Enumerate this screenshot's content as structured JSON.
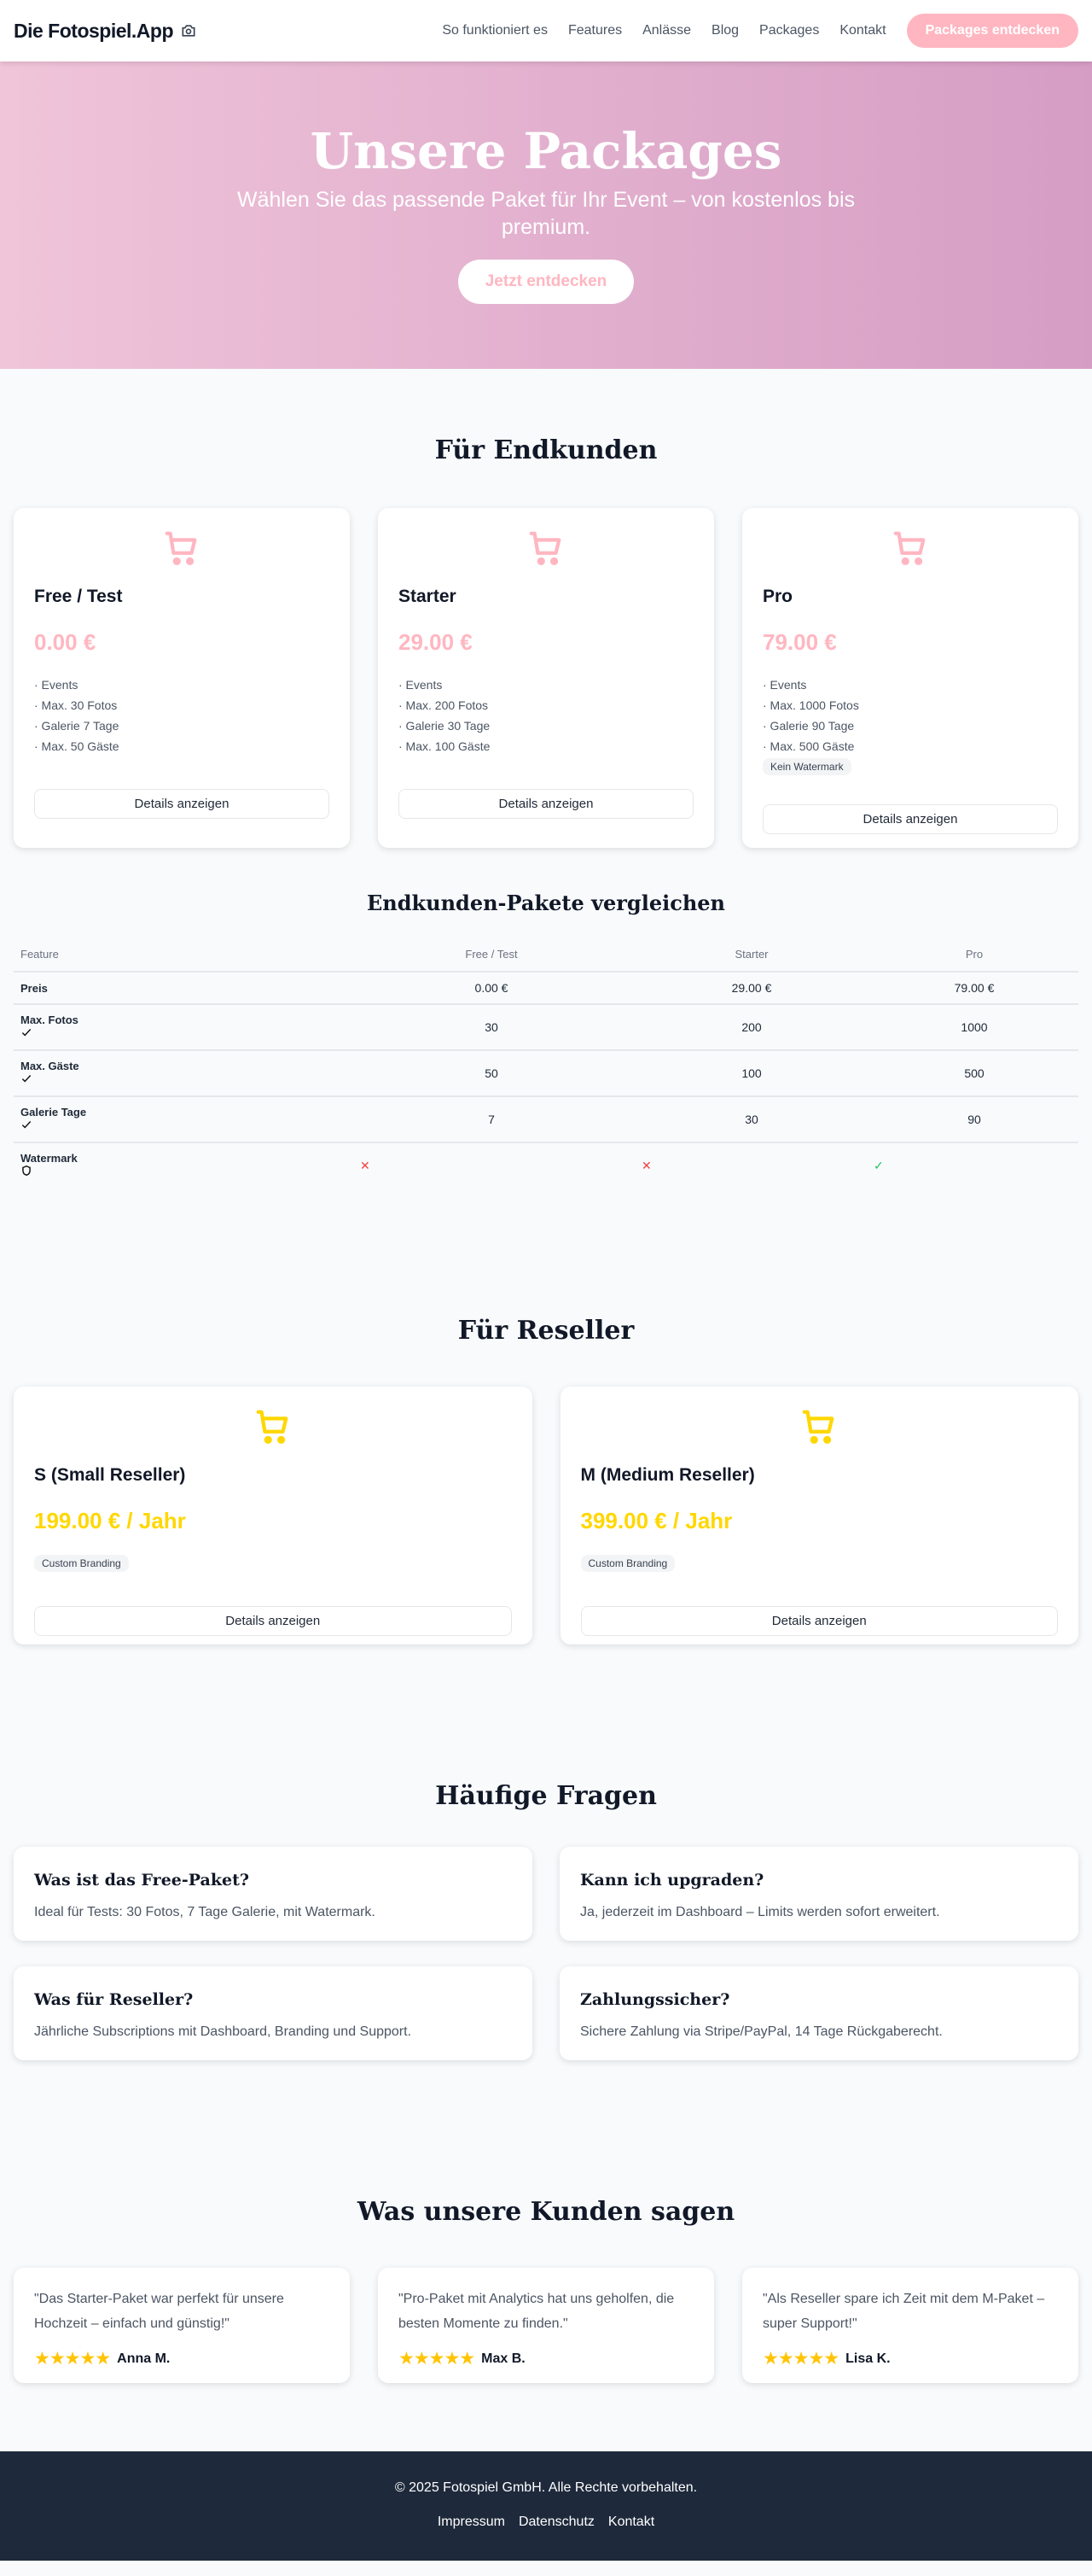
{
  "nav": {
    "logo": "Die Fotospiel.App",
    "links": [
      "So funktioniert es",
      "Features",
      "Anlässe",
      "Blog",
      "Packages",
      "Kontakt"
    ],
    "cta": "Packages entdecken"
  },
  "hero": {
    "title": "Unsere Packages",
    "subtitle": "Wählen Sie das passende Paket für Ihr Event – von kostenlos bis premium.",
    "cta": "Jetzt entdecken"
  },
  "colors": {
    "pink": "#ffb6c1",
    "yellow": "#ffd700",
    "footer": "#1e293b"
  },
  "endkunden": {
    "title": "Für Endkunden",
    "details_label": "Details anzeigen",
    "packages": [
      {
        "name": "Free / Test",
        "price": "0.00 €",
        "features": [
          "· Events",
          "· Max. 30 Fotos",
          "· Galerie 7 Tage",
          "· Max. 50 Gäste"
        ],
        "tag": ""
      },
      {
        "name": "Starter",
        "price": "29.00 €",
        "features": [
          "· Events",
          "· Max. 200 Fotos",
          "· Galerie 30 Tage",
          "· Max. 100 Gäste"
        ],
        "tag": ""
      },
      {
        "name": "Pro",
        "price": "79.00 €",
        "features": [
          "· Events",
          "· Max. 1000 Fotos",
          "· Galerie 90 Tage",
          "· Max. 500 Gäste"
        ],
        "tag": "Kein Watermark"
      }
    ]
  },
  "compare": {
    "title": "Endkunden-Pakete vergleichen",
    "headers": [
      "Feature",
      "Free / Test",
      "Starter",
      "Pro"
    ],
    "rows": [
      {
        "label": "Preis",
        "icon": "",
        "values": [
          "0.00 €",
          "29.00 €",
          "79.00 €"
        ]
      },
      {
        "label": "Max. Fotos",
        "icon": "check-icon",
        "values": [
          "30",
          "200",
          "1000"
        ]
      },
      {
        "label": "Max. Gäste",
        "icon": "check-icon",
        "values": [
          "50",
          "100",
          "500"
        ]
      },
      {
        "label": "Galerie Tage",
        "icon": "check-icon",
        "values": [
          "7",
          "30",
          "90"
        ]
      }
    ],
    "watermark": {
      "label": "Watermark",
      "icon": "shield-icon",
      "values": [
        "✕",
        "✕",
        "✓"
      ]
    }
  },
  "reseller": {
    "title": "Für Reseller",
    "details_label": "Details anzeigen",
    "packages": [
      {
        "name": "S (Small Reseller)",
        "price": "199.00 € / Jahr",
        "tag": "Custom Branding"
      },
      {
        "name": "M (Medium Reseller)",
        "price": "399.00 € / Jahr",
        "tag": "Custom Branding"
      }
    ]
  },
  "faq": {
    "title": "Häufige Fragen",
    "items": [
      {
        "q": "Was ist das Free-Paket?",
        "a": "Ideal für Tests: 30 Fotos, 7 Tage Galerie, mit Watermark."
      },
      {
        "q": "Kann ich upgraden?",
        "a": "Ja, jederzeit im Dashboard – Limits werden sofort erweitert."
      },
      {
        "q": "Was für Reseller?",
        "a": "Jährliche Subscriptions mit Dashboard, Branding und Support."
      },
      {
        "q": "Zahlungssicher?",
        "a": "Sichere Zahlung via Stripe/PayPal, 14 Tage Rückgaberecht."
      }
    ]
  },
  "testimonials": {
    "title": "Was unsere Kunden sagen",
    "stars": "★★★★★",
    "items": [
      {
        "quote": "\"Das Starter-Paket war perfekt für unsere Hochzeit – einfach und günstig!\"",
        "name": "Anna M.",
        "rating": 5
      },
      {
        "quote": "\"Pro-Paket mit Analytics hat uns geholfen, die besten Momente zu finden.\"",
        "name": "Max B.",
        "rating": 5
      },
      {
        "quote": "\"Als Reseller spare ich Zeit mit dem M-Paket – super Support!\"",
        "name": "Lisa K.",
        "rating": 5
      }
    ]
  },
  "footer": {
    "copyright": "© 2025 Fotospiel GmbH. Alle Rechte vorbehalten.",
    "links": [
      "Impressum",
      "Datenschutz",
      "Kontakt"
    ]
  }
}
